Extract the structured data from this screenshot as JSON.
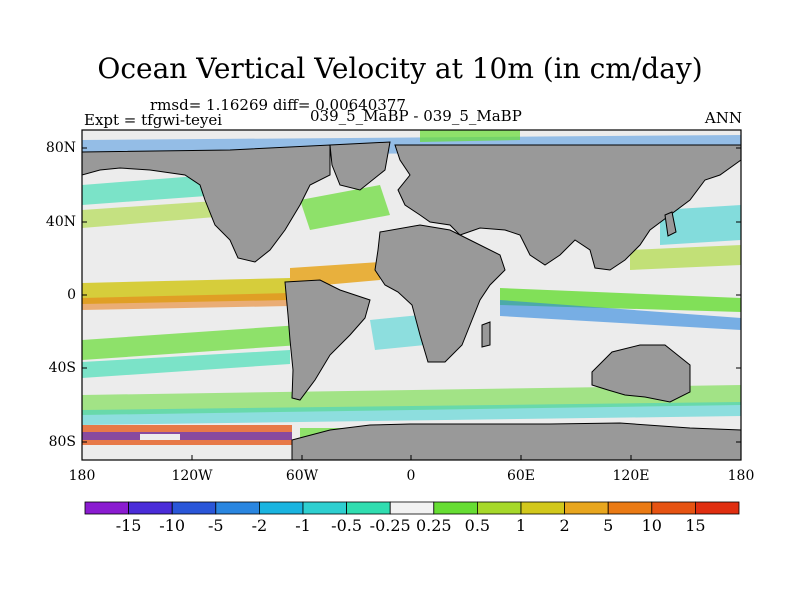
{
  "title": "Ocean Vertical Velocity at 10m (in cm/day)",
  "stats": "rmsd= 1.16269 diff= 0.00640377",
  "experiment": "Expt = tfgwi-teyei",
  "case": "039_5_MaBP - 039_5_MaBP",
  "season": "ANN",
  "axes": {
    "lat_ticks": [
      "80N",
      "40N",
      "0",
      "40S",
      "80S"
    ],
    "lon_ticks": [
      "180",
      "120W",
      "60W",
      "0",
      "60E",
      "120E",
      "180"
    ]
  },
  "colorbar": {
    "labels": [
      "-15",
      "-10",
      "-5",
      "-2",
      "-1",
      "-0.5",
      "-0.25",
      "0.25",
      "0.5",
      "1",
      "2",
      "5",
      "10",
      "15"
    ],
    "colors": [
      "#8a1bd0",
      "#4a2cd8",
      "#2a56d8",
      "#2a86e0",
      "#1ab4e0",
      "#2ecfd0",
      "#30ddb0",
      "#f2f2f2",
      "#66dd33",
      "#a6d82a",
      "#d2c81c",
      "#e8a61e",
      "#ea7a14",
      "#e65312",
      "#e02e10"
    ]
  },
  "map_colors": {
    "land": "#999999",
    "ocean_neutral": "#ececec",
    "outline": "#000000"
  }
}
